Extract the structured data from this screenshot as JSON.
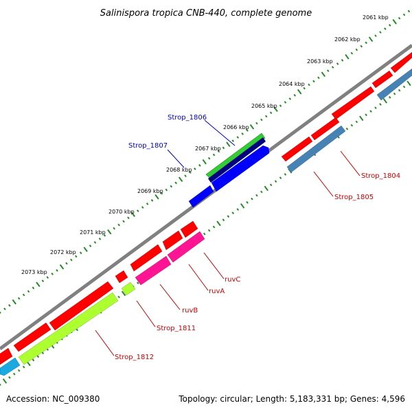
{
  "title": "Salinispora tropica CNB-440, complete genome",
  "kbp_ticks": [
    "2061 kbp",
    "2062 kbp",
    "2063 kbp",
    "2064 kbp",
    "2065 kbp",
    "2066 kbp",
    "2067 kbp",
    "2068 kbp",
    "2069 kbp",
    "2070 kbp",
    "2071 kbp",
    "2072 kbp",
    "2073 kbp"
  ],
  "gene_labels": {
    "strop_1806": "Strop_1806",
    "strop_1807": "Strop_1807",
    "strop_1804": "Strop_1804",
    "strop_1805": "Strop_1805",
    "ruvC": "ruvC",
    "ruvA": "ruvA",
    "ruvB": "ruvB",
    "strop_1811": "Strop_1811",
    "strop_1812": "Strop_1812"
  },
  "colors": {
    "backbone": "#808080",
    "ticks": "#228b22",
    "forward_cds": "#ff0000",
    "blue_gene": "#0000ff",
    "navy_gene": "#000080",
    "green_gene": "#32cd32",
    "steelblue_gene": "#4682b4",
    "magenta_gene": "#ff1493",
    "yellowgreen_gene": "#adff2f",
    "cyan_gene": "#1ca9e0",
    "label_blue": "#0000cc",
    "label_red": "#cc0000"
  },
  "footer": {
    "accession": "Accession: NC_009380",
    "summary": "Topology: circular; Length: 5,183,331 bp; Genes: 4,596"
  }
}
